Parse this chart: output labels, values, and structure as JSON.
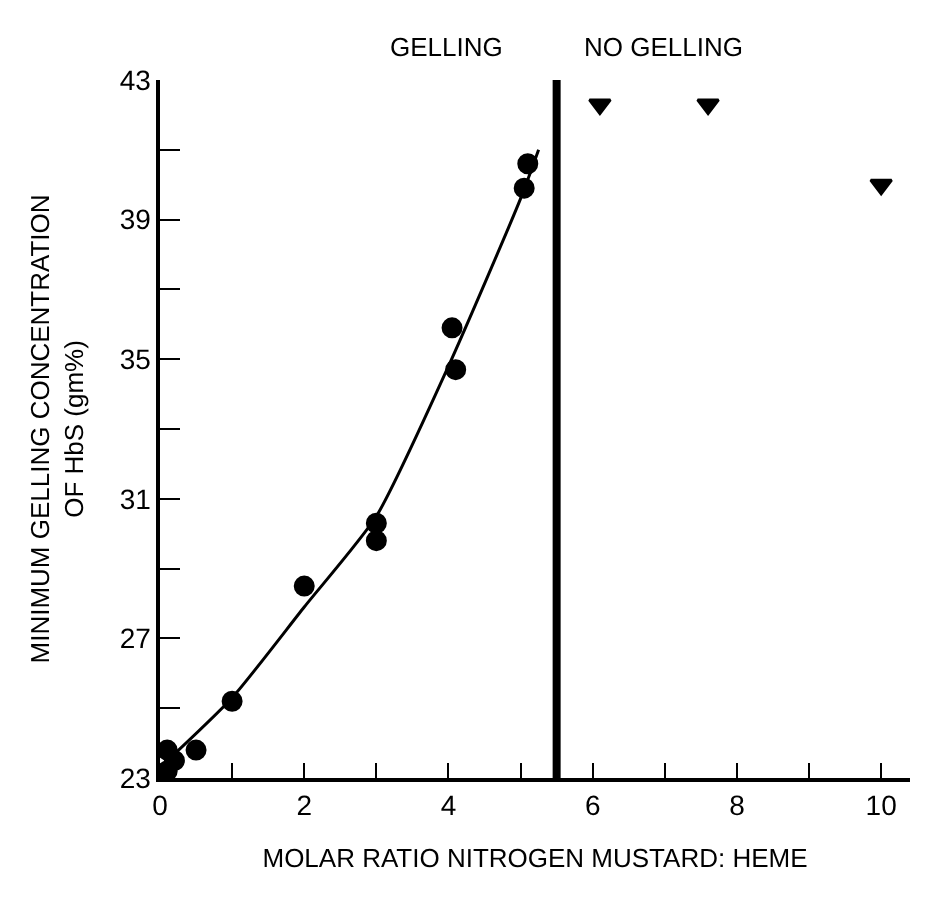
{
  "chart_data": {
    "type": "scatter",
    "xlabel": "MOLAR RATIO NITROGEN MUSTARD: HEME",
    "ylabel": "MINIMUM GELLING CONCENTRATION\nOF HbS (gm%)",
    "xlim": [
      0,
      10.4
    ],
    "ylim": [
      23,
      43
    ],
    "xticks": [
      0,
      {
        "value": 1,
        "label": null
      },
      2,
      {
        "value": 3,
        "label": null
      },
      4,
      {
        "value": 5,
        "label": null
      },
      6,
      {
        "value": 7,
        "label": null
      },
      8,
      {
        "value": 9,
        "label": null
      },
      10
    ],
    "yticks": [
      23,
      {
        "value": 25,
        "label": null
      },
      27,
      {
        "value": 29,
        "label": null
      },
      31,
      {
        "value": 33,
        "label": null
      },
      35,
      {
        "value": 37,
        "label": null
      },
      39,
      {
        "value": 41,
        "label": null
      },
      43
    ],
    "marker": "circle",
    "series": [
      {
        "color": "#000000",
        "x": [
          0.1,
          0.2,
          0.5,
          1,
          2,
          3,
          3,
          4.1,
          4.05,
          5.05,
          5.1,
          0.1
        ],
        "values": [
          23.8,
          23.5,
          23.8,
          25.2,
          28.5,
          30.3,
          29.8,
          34.7,
          35.9,
          39.9,
          40.6,
          23.2
        ]
      },
      {
        "type": "line",
        "color": "#000000",
        "marker": "none",
        "x": [
          0,
          1,
          2,
          3,
          4,
          5,
          5.25
        ],
        "values": [
          23.3,
          25.3,
          27.9,
          30.5,
          34.8,
          39.6,
          41
        ]
      },
      {
        "type": "scatter",
        "color": "#000000",
        "marker": "triangle",
        "x": [
          6.1,
          7.6,
          10
        ],
        "values": [
          42.3,
          42.3,
          40
        ]
      }
    ],
    "ref_lines": [
      {
        "axis": "x",
        "value": 5.5,
        "label": null,
        "color": "#000000"
      }
    ],
    "annotations": [
      "GELLING",
      "NO GELLING"
    ]
  }
}
